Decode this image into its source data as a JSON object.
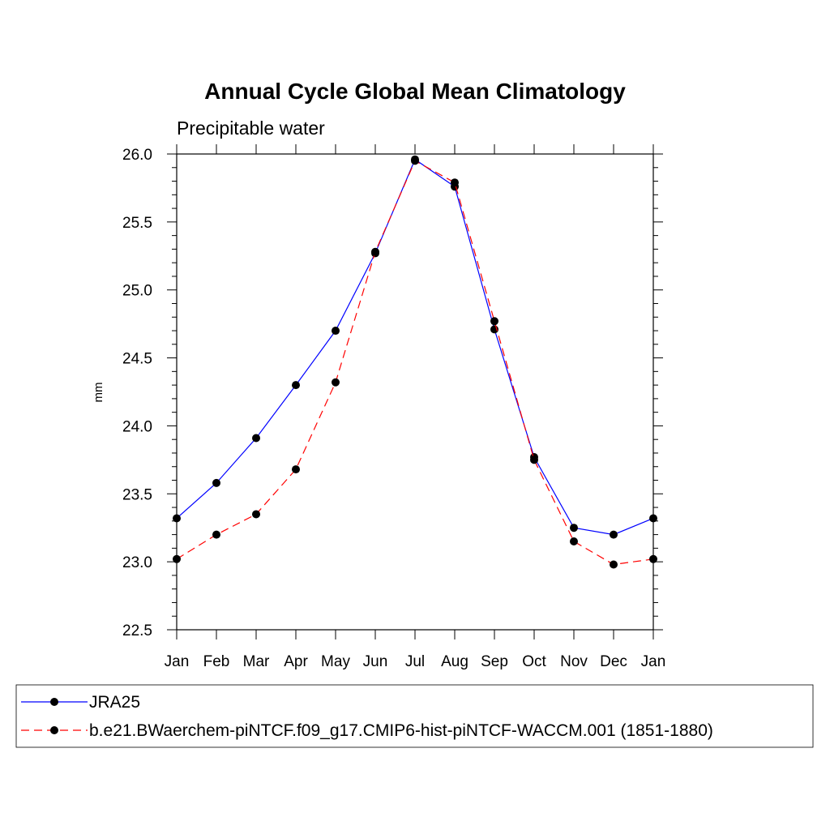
{
  "chart_data": {
    "type": "line",
    "title": "Annual Cycle Global Mean Climatology",
    "subtitle": "Precipitable water",
    "xlabel": "",
    "ylabel": "mm",
    "categories": [
      "Jan",
      "Feb",
      "Mar",
      "Apr",
      "May",
      "Jun",
      "Jul",
      "Aug",
      "Sep",
      "Oct",
      "Nov",
      "Dec",
      "Jan"
    ],
    "ylim": [
      22.5,
      26.0
    ],
    "yticks": [
      "22.5",
      "23.0",
      "23.5",
      "24.0",
      "24.5",
      "25.0",
      "25.5",
      "26.0"
    ],
    "grid": false,
    "legend_position": "bottom",
    "series": [
      {
        "name": "JRA25",
        "color": "#0000ff",
        "line_style": "solid",
        "marker": "filled-circle",
        "values": [
          23.32,
          23.58,
          23.91,
          24.3,
          24.7,
          25.27,
          25.96,
          25.76,
          24.71,
          23.77,
          23.25,
          23.2,
          23.32
        ]
      },
      {
        "name": "b.e21.BWaerchem-piNTCF.f09_g17.CMIP6-hist-piNTCF-WACCM.001 (1851-1880)",
        "color": "#ff0000",
        "line_style": "dashed",
        "marker": "filled-circle",
        "values": [
          23.02,
          23.2,
          23.35,
          23.68,
          24.32,
          25.28,
          25.95,
          25.79,
          24.77,
          23.75,
          23.15,
          22.98,
          23.02
        ]
      }
    ]
  }
}
